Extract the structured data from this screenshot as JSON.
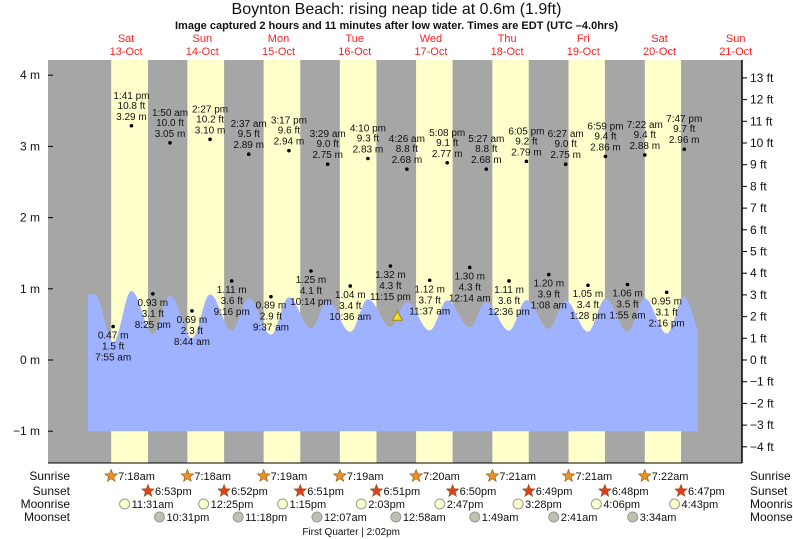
{
  "title": "Boynton Beach: rising  neap tide at 0.6m (1.9ft)",
  "subtitle": "Image captured 2 hours and 11 minutes after low water. Times are EDT (UTC –4.0hrs)",
  "colors": {
    "day": "#ffffcc",
    "night": "#a6a6a6",
    "water": "#9fb2ff",
    "day_label": "#ff2020",
    "sunrise": "#e8902a",
    "sunset": "#e53a20",
    "moonrise": "#ffffcc",
    "moonset": "#c0c0b0",
    "current_marker": "#f2e030"
  },
  "chart_data": {
    "type": "area",
    "title": "Boynton Beach: rising  neap tide at 0.6m (1.9ft)",
    "ylim_m": [
      -1,
      4
    ],
    "left_axis_ticks": [
      "4 m",
      "3 m",
      "2 m",
      "1 m",
      "0 m",
      "−1 m"
    ],
    "right_axis_ticks": [
      "13 ft",
      "12 ft",
      "11 ft",
      "10 ft",
      "9 ft",
      "8 ft",
      "7 ft",
      "6 ft",
      "5 ft",
      "4 ft",
      "3 ft",
      "2 ft",
      "1 ft",
      "0 ft",
      "−1 ft",
      "−2 ft",
      "−3 ft",
      "−4 ft"
    ],
    "days": [
      {
        "dow": "Sat",
        "date": "13-Oct"
      },
      {
        "dow": "Sun",
        "date": "14-Oct"
      },
      {
        "dow": "Mon",
        "date": "15-Oct"
      },
      {
        "dow": "Tue",
        "date": "16-Oct"
      },
      {
        "dow": "Wed",
        "date": "17-Oct"
      },
      {
        "dow": "Thu",
        "date": "18-Oct"
      },
      {
        "dow": "Fri",
        "date": "19-Oct"
      },
      {
        "dow": "Sat",
        "date": "20-Oct"
      },
      {
        "dow": "Sun",
        "date": "21-Oct"
      }
    ],
    "extremes": [
      {
        "day": 0,
        "type": "low",
        "time": "7:55 am",
        "m": "0.47 m",
        "ft": "1.5 ft",
        "h": 0.47
      },
      {
        "day": 0,
        "type": "high",
        "time": "1:41 pm",
        "m": "3.29 m",
        "ft": "10.8 ft",
        "h": 3.29
      },
      {
        "day": 0,
        "type": "low",
        "time": "8:25 pm",
        "m": "0.93 m",
        "ft": "3.1 ft",
        "h": 0.93
      },
      {
        "day": 1,
        "type": "high",
        "time": "1:50 am",
        "m": "3.05 m",
        "ft": "10.0 ft",
        "h": 3.05
      },
      {
        "day": 1,
        "type": "low",
        "time": "8:44 am",
        "m": "0.69 m",
        "ft": "2.3 ft",
        "h": 0.69
      },
      {
        "day": 1,
        "type": "high",
        "time": "2:27 pm",
        "m": "3.10 m",
        "ft": "10.2 ft",
        "h": 3.1
      },
      {
        "day": 1,
        "type": "low",
        "time": "9:16 pm",
        "m": "1.11 m",
        "ft": "3.6 ft",
        "h": 1.11
      },
      {
        "day": 2,
        "type": "high",
        "time": "2:37 am",
        "m": "2.89 m",
        "ft": "9.5 ft",
        "h": 2.89
      },
      {
        "day": 2,
        "type": "low",
        "time": "9:37 am",
        "m": "0.89 m",
        "ft": "2.9 ft",
        "h": 0.89
      },
      {
        "day": 2,
        "type": "high",
        "time": "3:17 pm",
        "m": "2.94 m",
        "ft": "9.6 ft",
        "h": 2.94
      },
      {
        "day": 2,
        "type": "low",
        "time": "10:14 pm",
        "m": "1.25 m",
        "ft": "4.1 ft",
        "h": 1.25
      },
      {
        "day": 3,
        "type": "high",
        "time": "3:29 am",
        "m": "2.75 m",
        "ft": "9.0 ft",
        "h": 2.75
      },
      {
        "day": 3,
        "type": "low",
        "time": "10:36 am",
        "m": "1.04 m",
        "ft": "3.4 ft",
        "h": 1.04
      },
      {
        "day": 3,
        "type": "high",
        "time": "4:10 pm",
        "m": "2.83 m",
        "ft": "9.3 ft",
        "h": 2.83
      },
      {
        "day": 3,
        "type": "low",
        "time": "11:15 pm",
        "m": "1.32 m",
        "ft": "4.3 ft",
        "h": 1.32
      },
      {
        "day": 4,
        "type": "high",
        "time": "4:26 am",
        "m": "2.68 m",
        "ft": "8.8 ft",
        "h": 2.68
      },
      {
        "day": 4,
        "type": "low",
        "time": "11:37 am",
        "m": "1.12 m",
        "ft": "3.7 ft",
        "h": 1.12
      },
      {
        "day": 4,
        "type": "high",
        "time": "5:08 pm",
        "m": "2.77 m",
        "ft": "9.1 ft",
        "h": 2.77
      },
      {
        "day": 5,
        "type": "low",
        "time": "12:14 am",
        "m": "1.30 m",
        "ft": "4.3 ft",
        "h": 1.3
      },
      {
        "day": 5,
        "type": "high",
        "time": "5:27 am",
        "m": "2.68 m",
        "ft": "8.8 ft",
        "h": 2.68
      },
      {
        "day": 5,
        "type": "low",
        "time": "12:36 pm",
        "m": "1.11 m",
        "ft": "3.6 ft",
        "h": 1.11
      },
      {
        "day": 5,
        "type": "high",
        "time": "6:05 pm",
        "m": "2.79 m",
        "ft": "9.2 ft",
        "h": 2.79
      },
      {
        "day": 6,
        "type": "low",
        "time": "1:08 am",
        "m": "1.20 m",
        "ft": "3.9 ft",
        "h": 1.2
      },
      {
        "day": 6,
        "type": "high",
        "time": "6:27 am",
        "m": "2.75 m",
        "ft": "9.0 ft",
        "h": 2.75
      },
      {
        "day": 6,
        "type": "low",
        "time": "1:28 pm",
        "m": "1.05 m",
        "ft": "3.4 ft",
        "h": 1.05
      },
      {
        "day": 6,
        "type": "high",
        "time": "6:59 pm",
        "m": "2.86 m",
        "ft": "9.4 ft",
        "h": 2.86
      },
      {
        "day": 7,
        "type": "low",
        "time": "1:55 am",
        "m": "1.06 m",
        "ft": "3.5 ft",
        "h": 1.06
      },
      {
        "day": 7,
        "type": "high",
        "time": "7:22 am",
        "m": "2.88 m",
        "ft": "9.4 ft",
        "h": 2.88
      },
      {
        "day": 7,
        "type": "low",
        "time": "2:16 pm",
        "m": "0.95 m",
        "ft": "3.1 ft",
        "h": 0.95
      },
      {
        "day": 7,
        "type": "high",
        "time": "7:47 pm",
        "m": "2.96 m",
        "ft": "9.7 ft",
        "h": 2.96
      }
    ],
    "current": {
      "day": 4,
      "time": "1:26 am",
      "h": 0.6
    },
    "row_labels": {
      "sunrise": "Sunrise",
      "sunset": "Sunset",
      "moonrise": "Moonrise",
      "moonset": "Moonset"
    },
    "sunrise": [
      {
        "day": 0,
        "time": "7:18am"
      },
      {
        "day": 1,
        "time": "7:18am"
      },
      {
        "day": 2,
        "time": "7:19am"
      },
      {
        "day": 3,
        "time": "7:19am"
      },
      {
        "day": 4,
        "time": "7:20am"
      },
      {
        "day": 5,
        "time": "7:21am"
      },
      {
        "day": 6,
        "time": "7:21am"
      },
      {
        "day": 7,
        "time": "7:22am"
      }
    ],
    "sunset": [
      {
        "day": 0,
        "time": "6:53pm"
      },
      {
        "day": 1,
        "time": "6:52pm"
      },
      {
        "day": 2,
        "time": "6:51pm"
      },
      {
        "day": 3,
        "time": "6:51pm"
      },
      {
        "day": 4,
        "time": "6:50pm"
      },
      {
        "day": 5,
        "time": "6:49pm"
      },
      {
        "day": 6,
        "time": "6:48pm"
      },
      {
        "day": 7,
        "time": "6:47pm"
      }
    ],
    "moonrise": [
      {
        "day": 0,
        "time": "11:31am"
      },
      {
        "day": 1,
        "time": "12:25pm"
      },
      {
        "day": 2,
        "time": "1:15pm"
      },
      {
        "day": 3,
        "time": "2:03pm"
      },
      {
        "day": 4,
        "time": "2:47pm"
      },
      {
        "day": 5,
        "time": "3:28pm"
      },
      {
        "day": 6,
        "time": "4:06pm"
      },
      {
        "day": 7,
        "time": "4:43pm"
      }
    ],
    "moonset": [
      {
        "day": 0,
        "time": "10:31pm"
      },
      {
        "day": 1,
        "time": "11:18pm"
      },
      {
        "day": 3,
        "time": "12:07am"
      },
      {
        "day": 4,
        "time": "12:58am"
      },
      {
        "day": 5,
        "time": "1:49am"
      },
      {
        "day": 6,
        "time": "2:41am"
      },
      {
        "day": 7,
        "time": "3:34am"
      }
    ],
    "moon_phase": {
      "day": 3,
      "time": "2:02pm",
      "text": "First Quarter | 2:02pm"
    }
  }
}
